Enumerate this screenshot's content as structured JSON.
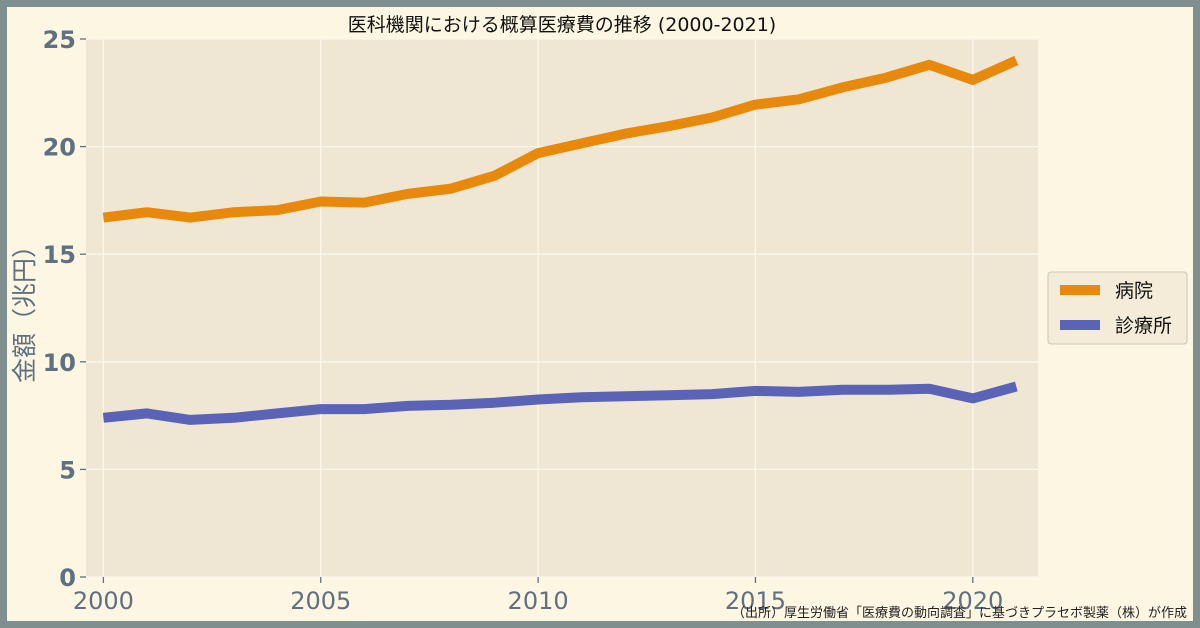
{
  "chart_data": {
    "type": "line",
    "title": "医科機関における概算医療費の推移 (2000-2021)",
    "xlabel": "",
    "ylabel": "金額（兆円）",
    "x": [
      2000,
      2001,
      2002,
      2003,
      2004,
      2005,
      2006,
      2007,
      2008,
      2009,
      2010,
      2011,
      2012,
      2013,
      2014,
      2015,
      2016,
      2017,
      2018,
      2019,
      2020,
      2021
    ],
    "xticks": [
      2000,
      2005,
      2010,
      2015,
      2020
    ],
    "yticks": [
      0,
      5,
      10,
      15,
      20,
      25
    ],
    "xlim": [
      1999.6,
      2021.5
    ],
    "ylim": [
      0,
      25
    ],
    "grid": true,
    "legend_position": "right",
    "series": [
      {
        "name": "病院",
        "color": "#e8890c",
        "values": [
          16.7,
          16.95,
          16.7,
          16.95,
          17.05,
          17.45,
          17.4,
          17.8,
          18.05,
          18.65,
          19.7,
          20.15,
          20.6,
          20.95,
          21.35,
          21.95,
          22.2,
          22.75,
          23.2,
          23.8,
          23.1,
          24.0
        ]
      },
      {
        "name": "診療所",
        "color": "#5b63b7",
        "values": [
          7.4,
          7.6,
          7.3,
          7.4,
          7.6,
          7.8,
          7.8,
          7.95,
          8.0,
          8.1,
          8.25,
          8.35,
          8.4,
          8.45,
          8.5,
          8.65,
          8.6,
          8.7,
          8.7,
          8.75,
          8.3,
          8.85
        ]
      }
    ]
  },
  "source_note": "（出所）厚生労働省「医療費の動向調査」に基づきプラセボ製薬（株）が作成"
}
